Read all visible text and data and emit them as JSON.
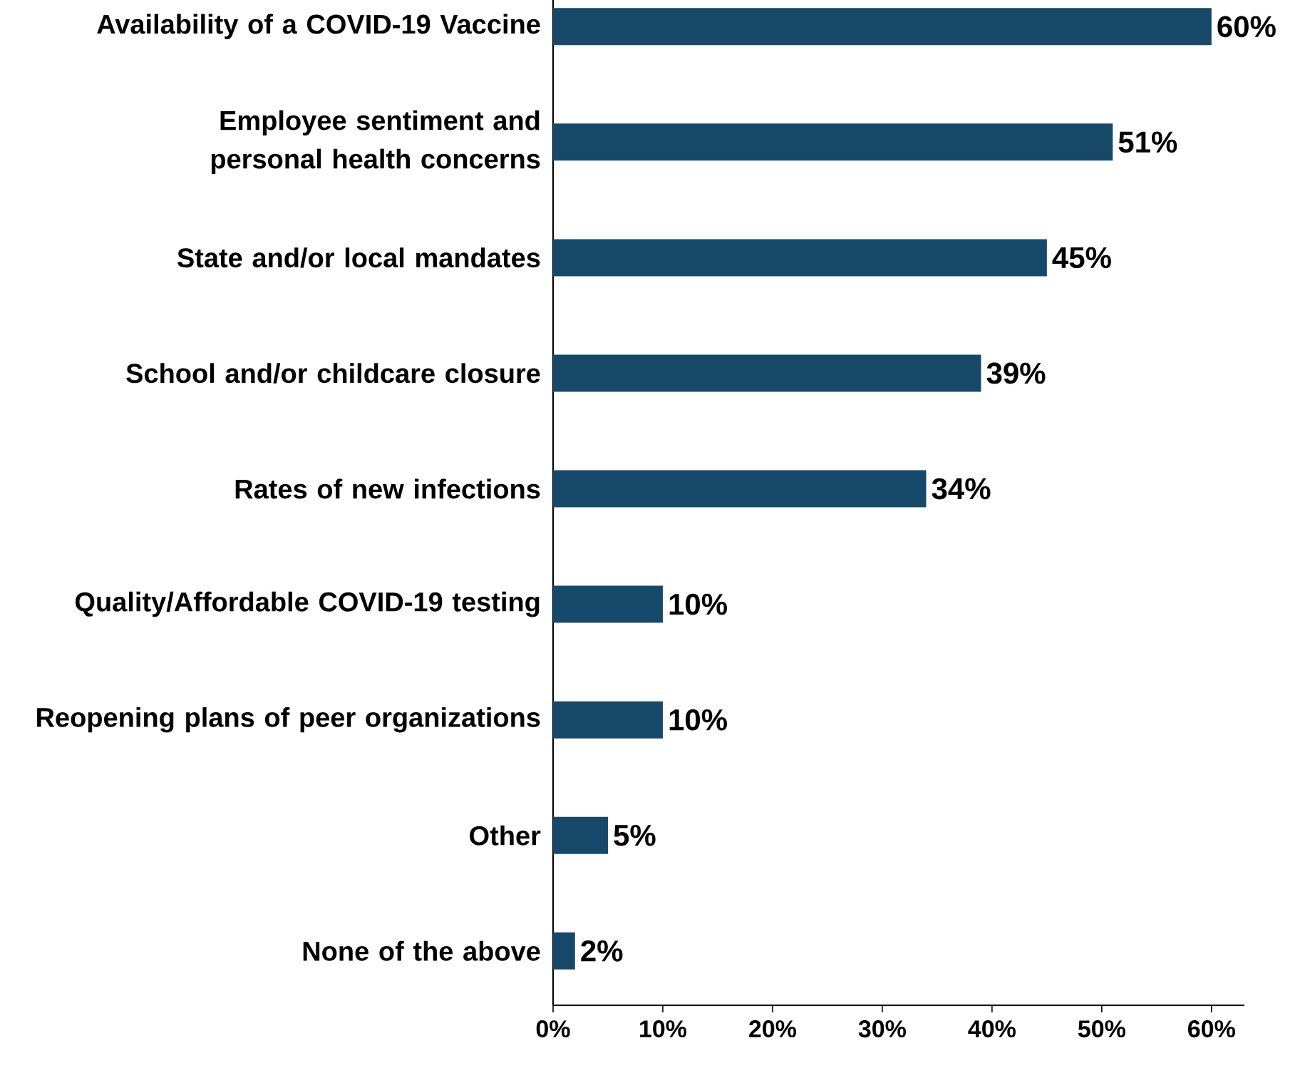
{
  "chart_data": {
    "type": "bar",
    "orientation": "horizontal",
    "categories": [
      "Availability of a COVID-19 Vaccine",
      "Employee sentiment and personal health concerns",
      "State and/or local mandates",
      "School and/or childcare closure",
      "Rates of new infections",
      "Quality/Affordable COVID-19 testing",
      "Reopening plans of peer organizations",
      "Other",
      "None of the above"
    ],
    "values": [
      60,
      51,
      45,
      39,
      34,
      10,
      10,
      5,
      2
    ],
    "value_labels": [
      "60%",
      "51%",
      "45%",
      "39%",
      "34%",
      "10%",
      "10%",
      "5%",
      "2%"
    ],
    "color": "#164869",
    "xlim": [
      0,
      63
    ],
    "xticks": [
      {
        "value": 0,
        "label": "0%"
      },
      {
        "value": 10,
        "label": "10%"
      },
      {
        "value": 20,
        "label": "20%"
      },
      {
        "value": 30,
        "label": "30%"
      },
      {
        "value": 40,
        "label": "40%"
      },
      {
        "value": 50,
        "label": "50%"
      },
      {
        "value": 60,
        "label": "60%"
      }
    ],
    "grid": false
  }
}
